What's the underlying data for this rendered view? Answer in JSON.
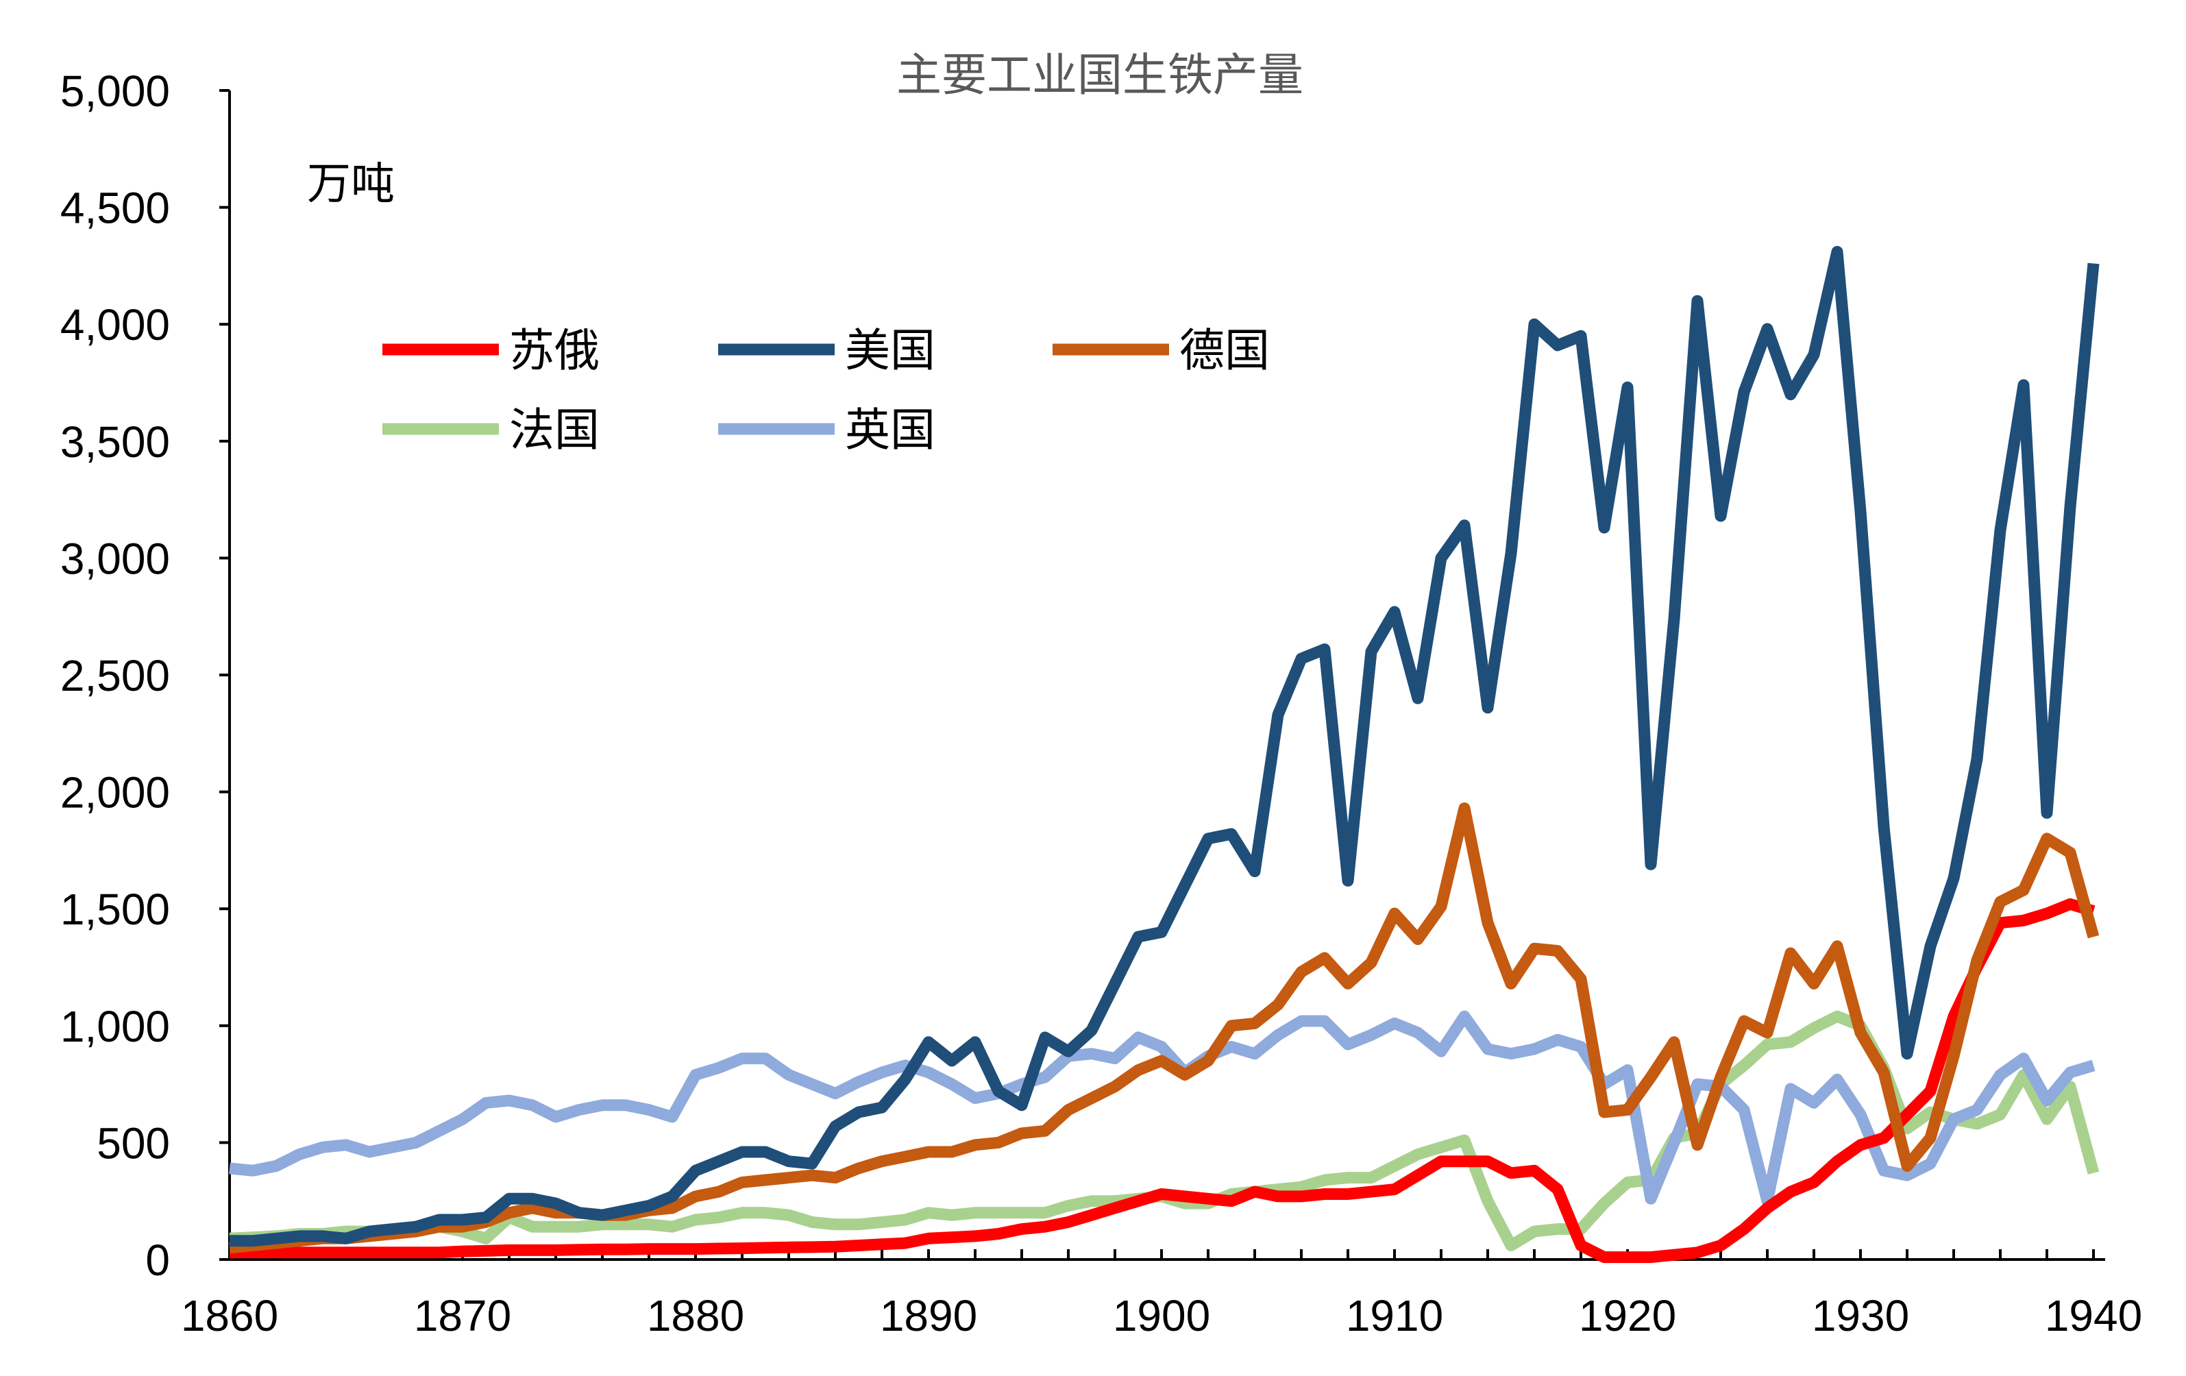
{
  "chart_data": {
    "type": "line",
    "title": "主要工业国生铁产量",
    "unit_label": "万吨",
    "xlabel": "",
    "ylabel": "",
    "xlim": [
      1860,
      1940
    ],
    "ylim": [
      0,
      5000
    ],
    "x_ticks": [
      1860,
      1870,
      1880,
      1890,
      1900,
      1910,
      1920,
      1930,
      1940
    ],
    "x_tick_labels": [
      "1860",
      "1870",
      "1880",
      "1890",
      "1900",
      "1910",
      "1920",
      "1930",
      "1940"
    ],
    "y_ticks": [
      0,
      500,
      1000,
      1500,
      2000,
      2500,
      3000,
      3500,
      4000,
      4500,
      5000
    ],
    "y_tick_labels": [
      "0",
      "500",
      "1,000",
      "1,500",
      "2,000",
      "2,500",
      "3,000",
      "3,500",
      "4,000",
      "4,500",
      "5,000"
    ],
    "legend_position": "upper-left",
    "draw_order": [
      "法国",
      "英国",
      "苏俄",
      "德国",
      "美国"
    ],
    "x": [
      1860,
      1861,
      1862,
      1863,
      1864,
      1865,
      1866,
      1867,
      1868,
      1869,
      1870,
      1871,
      1872,
      1873,
      1874,
      1875,
      1876,
      1877,
      1878,
      1879,
      1880,
      1881,
      1882,
      1883,
      1884,
      1885,
      1886,
      1887,
      1888,
      1889,
      1890,
      1891,
      1892,
      1893,
      1894,
      1895,
      1896,
      1897,
      1898,
      1899,
      1900,
      1901,
      1902,
      1903,
      1904,
      1905,
      1906,
      1907,
      1908,
      1909,
      1910,
      1911,
      1912,
      1913,
      1914,
      1915,
      1916,
      1917,
      1918,
      1919,
      1920,
      1921,
      1922,
      1923,
      1924,
      1925,
      1926,
      1927,
      1928,
      1929,
      1930,
      1931,
      1932,
      1933,
      1934,
      1935,
      1936,
      1937,
      1938,
      1939,
      1940
    ],
    "series": [
      {
        "name": "苏俄",
        "color": "#ff0000",
        "values": [
          30,
          30,
          30,
          30,
          30,
          30,
          30,
          30,
          30,
          30,
          35,
          37,
          40,
          40,
          40,
          42,
          43,
          43,
          45,
          45,
          45,
          47,
          48,
          50,
          52,
          53,
          55,
          60,
          65,
          70,
          90,
          95,
          100,
          110,
          130,
          140,
          160,
          190,
          220,
          250,
          280,
          270,
          260,
          250,
          290,
          270,
          270,
          280,
          280,
          290,
          300,
          360,
          420,
          420,
          420,
          370,
          380,
          300,
          60,
          10,
          10,
          10,
          20,
          30,
          60,
          130,
          220,
          290,
          330,
          420,
          490,
          520,
          620,
          720,
          1040,
          1250,
          1440,
          1450,
          1480,
          1520,
          1490
        ]
      },
      {
        "name": "美国",
        "color": "#1f4e79",
        "values": [
          80,
          80,
          90,
          100,
          100,
          90,
          120,
          130,
          140,
          170,
          170,
          180,
          260,
          260,
          240,
          200,
          190,
          210,
          230,
          270,
          380,
          420,
          460,
          460,
          420,
          410,
          570,
          630,
          650,
          770,
          930,
          850,
          930,
          720,
          660,
          950,
          890,
          980,
          1180,
          1380,
          1400,
          1600,
          1800,
          1820,
          1660,
          2330,
          2570,
          2610,
          1620,
          2600,
          2770,
          2400,
          3000,
          3140,
          2360,
          3020,
          4000,
          3910,
          3950,
          3130,
          3730,
          1690,
          2740,
          4100,
          3180,
          3710,
          3980,
          3700,
          3870,
          4310,
          3200,
          1850,
          880,
          1340,
          1630,
          2140,
          3120,
          3740,
          1910,
          3220,
          4260
        ]
      },
      {
        "name": "德国",
        "color": "#c55a11",
        "values": [
          50,
          60,
          70,
          80,
          90,
          90,
          100,
          110,
          120,
          140,
          140,
          160,
          200,
          220,
          200,
          200,
          190,
          190,
          210,
          220,
          270,
          290,
          330,
          340,
          350,
          360,
          350,
          390,
          420,
          440,
          460,
          460,
          490,
          500,
          540,
          550,
          640,
          690,
          740,
          810,
          850,
          790,
          850,
          1000,
          1010,
          1090,
          1230,
          1290,
          1180,
          1270,
          1480,
          1370,
          1510,
          1930,
          1440,
          1180,
          1330,
          1320,
          1200,
          630,
          640,
          780,
          930,
          490,
          780,
          1020,
          970,
          1310,
          1180,
          1340,
          970,
          800,
          400,
          520,
          870,
          1280,
          1530,
          1580,
          1800,
          1740,
          1380
        ]
      },
      {
        "name": "法国",
        "color": "#a9d18e",
        "values": [
          90,
          95,
          100,
          110,
          110,
          120,
          120,
          120,
          130,
          140,
          120,
          90,
          180,
          140,
          140,
          140,
          150,
          150,
          150,
          140,
          170,
          180,
          200,
          200,
          190,
          160,
          150,
          150,
          160,
          170,
          200,
          190,
          200,
          200,
          200,
          200,
          230,
          250,
          250,
          260,
          270,
          240,
          240,
          280,
          290,
          300,
          310,
          340,
          350,
          350,
          400,
          450,
          480,
          510,
          250,
          60,
          120,
          130,
          130,
          240,
          330,
          340,
          520,
          540,
          750,
          830,
          920,
          930,
          990,
          1040,
          1000,
          820,
          560,
          630,
          600,
          580,
          620,
          790,
          600,
          740,
          370
        ]
      },
      {
        "name": "英国",
        "color": "#8faadc",
        "values": [
          390,
          380,
          400,
          450,
          480,
          490,
          460,
          480,
          500,
          550,
          600,
          670,
          680,
          660,
          610,
          640,
          660,
          660,
          640,
          610,
          790,
          820,
          860,
          860,
          790,
          750,
          710,
          760,
          800,
          830,
          800,
          750,
          690,
          710,
          750,
          780,
          870,
          880,
          860,
          950,
          910,
          800,
          870,
          910,
          880,
          960,
          1020,
          1020,
          920,
          960,
          1010,
          970,
          890,
          1040,
          900,
          880,
          900,
          940,
          910,
          750,
          810,
          260,
          500,
          750,
          740,
          640,
          250,
          730,
          670,
          770,
          620,
          380,
          360,
          410,
          600,
          640,
          790,
          860,
          680,
          800,
          830
        ]
      }
    ]
  }
}
